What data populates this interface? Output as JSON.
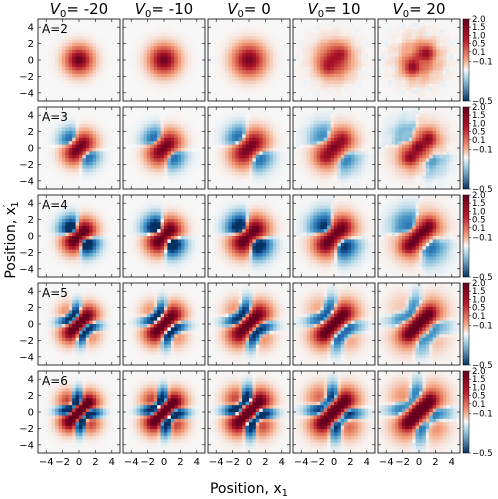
{
  "chart_data": {
    "type": "heatmap",
    "description_free": true,
    "columns": [
      {
        "label_prefix": "V",
        "label_sub": "0",
        "label_value": "= -20",
        "V0": -20
      },
      {
        "label_prefix": "V",
        "label_sub": "0",
        "label_value": "= -10",
        "V0": -10
      },
      {
        "label_prefix": "V",
        "label_sub": "0",
        "label_value": "= 0",
        "V0": 0
      },
      {
        "label_prefix": "V",
        "label_sub": "0",
        "label_value": "= 10",
        "V0": 10
      },
      {
        "label_prefix": "V",
        "label_sub": "0",
        "label_value": "= 20",
        "V0": 20
      }
    ],
    "rows": [
      {
        "label": "A=2",
        "A": 2
      },
      {
        "label": "A=3",
        "A": 3
      },
      {
        "label": "A=4",
        "A": 4
      },
      {
        "label": "A=5",
        "A": 5
      },
      {
        "label": "A=6",
        "A": 6
      }
    ],
    "xlabel": {
      "text": "Position, x",
      "sub": "1"
    },
    "ylabel": {
      "text": "Position, x",
      "sup": "′",
      "sub": "1"
    },
    "xlim": [
      -5,
      5
    ],
    "ylim": [
      -5,
      5
    ],
    "xticks": [
      "−4",
      "−2",
      "0",
      "2",
      "4"
    ],
    "yticks": [
      "4",
      "2",
      "0",
      "−2",
      "−4"
    ],
    "colorbar": {
      "ticks": [
        "2.0",
        "1.5",
        "1.0",
        "0.5",
        "0.1",
        "−0.1",
        "−0.5"
      ],
      "scale": "symlog",
      "range": [
        -0.5,
        2.0
      ]
    },
    "colors": {
      "positive_max": "#67001f",
      "positive_mid": "#f4a582",
      "neutral": "#f7f7f7",
      "negative_mid": "#92c5de",
      "negative_max": "#053061"
    }
  }
}
